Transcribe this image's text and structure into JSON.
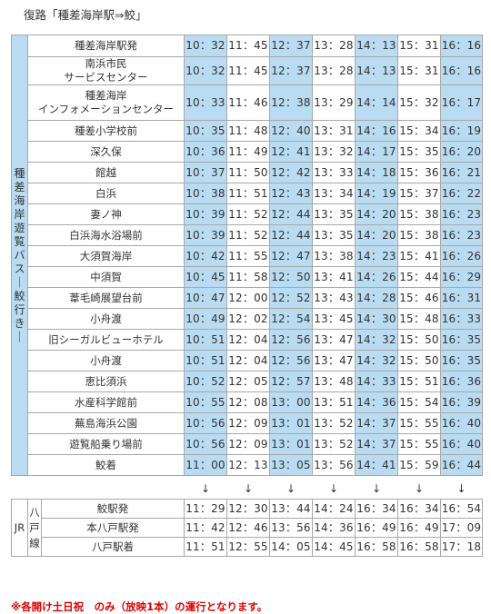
{
  "heading": "復路「種差海岸駅⇒鮫」",
  "bus_section": {
    "line_label": "種差海岸遊覧バス｜鮫 行き｜",
    "stops": [
      {
        "name": "種差海岸駅発",
        "times": [
          "10：32",
          "11：45",
          "12：37",
          "13：28",
          "14：13",
          "15：31",
          "16：16"
        ]
      },
      {
        "name": "南浜市民\nサービスセンター",
        "times": [
          "10：32",
          "11：45",
          "12：37",
          "13：28",
          "14：13",
          "15：31",
          "16：16"
        ]
      },
      {
        "name": "種差海岸\nインフォメーションセンター",
        "times": [
          "10：33",
          "11：46",
          "12：38",
          "13：29",
          "14：14",
          "15：32",
          "16：17"
        ]
      },
      {
        "name": "種差小学校前",
        "times": [
          "10：35",
          "11：48",
          "12：40",
          "13：31",
          "14：16",
          "15：34",
          "16：19"
        ]
      },
      {
        "name": "深久保",
        "times": [
          "10：36",
          "11：49",
          "12：41",
          "13：32",
          "14：17",
          "15：35",
          "16：20"
        ]
      },
      {
        "name": "館越",
        "times": [
          "10：37",
          "11：50",
          "12：42",
          "13：33",
          "14：18",
          "15：36",
          "16：21"
        ]
      },
      {
        "name": "白浜",
        "times": [
          "10：38",
          "11：51",
          "12：43",
          "13：34",
          "14：19",
          "15：37",
          "16：22"
        ]
      },
      {
        "name": "妻ノ神",
        "times": [
          "10：39",
          "11：52",
          "12：44",
          "13：35",
          "14：20",
          "15：38",
          "16：23"
        ]
      },
      {
        "name": "白浜海水浴場前",
        "times": [
          "10：39",
          "11：52",
          "12：44",
          "13：35",
          "14：20",
          "15：38",
          "16：23"
        ]
      },
      {
        "name": "大須賀海岸",
        "times": [
          "10：42",
          "11：55",
          "12：47",
          "13：38",
          "14：23",
          "15：41",
          "16：26"
        ]
      },
      {
        "name": "中須賀",
        "times": [
          "10：45",
          "11：58",
          "12：50",
          "13：41",
          "14：26",
          "15：44",
          "16：29"
        ]
      },
      {
        "name": "葦毛崎展望台前",
        "times": [
          "10：47",
          "12：00",
          "12：52",
          "13：43",
          "14：28",
          "15：46",
          "16：31"
        ]
      },
      {
        "name": "小舟渡",
        "times": [
          "10：49",
          "12：02",
          "12：54",
          "13：45",
          "14：30",
          "15：48",
          "16：33"
        ]
      },
      {
        "name": "旧シーガルビューホテル",
        "times": [
          "10：51",
          "12：04",
          "12：56",
          "13：47",
          "14：32",
          "15：50",
          "16：35"
        ]
      },
      {
        "name": "小舟渡",
        "times": [
          "10：51",
          "12：04",
          "12：56",
          "13：47",
          "14：32",
          "15：50",
          "16：35"
        ]
      },
      {
        "name": "恵比須浜",
        "times": [
          "10：52",
          "12：05",
          "12：57",
          "13：48",
          "14：33",
          "15：51",
          "16：36"
        ]
      },
      {
        "name": "水産科学館前",
        "times": [
          "10：55",
          "12：08",
          "13：00",
          "13：51",
          "14：36",
          "15：54",
          "16：39"
        ]
      },
      {
        "name": "蕪島海浜公園",
        "times": [
          "10：56",
          "12：09",
          "13：01",
          "13：52",
          "14：37",
          "15：55",
          "16：40"
        ]
      },
      {
        "name": "遊覧船乗り場前",
        "times": [
          "10：56",
          "12：09",
          "13：01",
          "13：52",
          "14：37",
          "15：55",
          "16：40"
        ]
      },
      {
        "name": "鮫着",
        "times": [
          "11：00",
          "12：13",
          "13：05",
          "13：56",
          "14：41",
          "15：59",
          "16：44"
        ]
      }
    ]
  },
  "arrow_glyph": "↓",
  "jr_section": {
    "label": "JR",
    "line": "八戸線",
    "stops": [
      {
        "name": "鮫駅発",
        "times": [
          "11：29",
          "12：30",
          "13：44",
          "14：24",
          "16：34",
          "16：34",
          "16：54"
        ]
      },
      {
        "name": "本八戸駅発",
        "times": [
          "11：42",
          "12：46",
          "13：56",
          "14：36",
          "16：49",
          "16：49",
          "17：09"
        ]
      },
      {
        "name": "八戸駅着",
        "times": [
          "11：51",
          "12：55",
          "14：05",
          "14：45",
          "16：58",
          "16：58",
          "17：18"
        ]
      }
    ]
  },
  "highlight_columns": [
    0,
    2,
    4,
    6
  ],
  "colors": {
    "highlight": "#b9dcf2",
    "border": "#a8a8a8",
    "note": "#e00000"
  },
  "footnote": "※各開け土日祝　のみ（放映1本）の運行となります。"
}
